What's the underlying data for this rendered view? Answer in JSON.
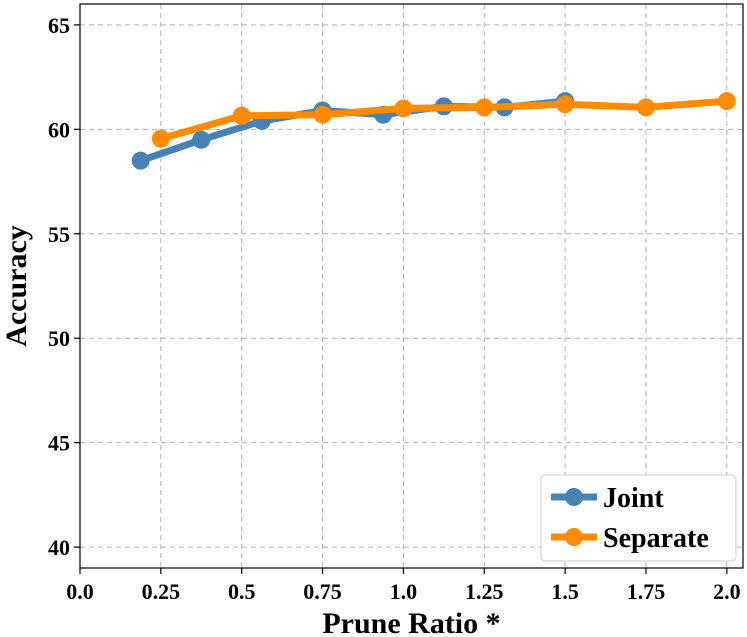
{
  "chart_data": {
    "type": "line",
    "xlabel": "Prune Ratio *",
    "ylabel": "Accuracy",
    "xlim": [
      0,
      2.05
    ],
    "ylim": [
      39,
      66
    ],
    "xticks": [
      0.0,
      0.25,
      0.5,
      0.75,
      1.0,
      1.25,
      1.5,
      1.75,
      2.0
    ],
    "xtick_labels": [
      "0.0",
      "0.25",
      "0.5",
      "0.75",
      "1.0",
      "1.25",
      "1.5",
      "1.75",
      "2.0"
    ],
    "yticks": [
      40,
      45,
      50,
      55,
      60,
      65
    ],
    "ytick_labels": [
      "40",
      "45",
      "50",
      "55",
      "60",
      "65"
    ],
    "grid": true,
    "legend_position": "bottom-right",
    "series": [
      {
        "name": "Joint",
        "color": "#4682b4",
        "x": [
          0.1875,
          0.375,
          0.5625,
          0.75,
          0.9375,
          1.125,
          1.3125,
          1.5
        ],
        "y": [
          58.5,
          59.5,
          60.4,
          60.9,
          60.7,
          61.1,
          61.05,
          61.35
        ]
      },
      {
        "name": "Separate",
        "color": "#ff8c00",
        "x": [
          0.25,
          0.5,
          0.75,
          1.0,
          1.25,
          1.5,
          1.75,
          2.0
        ],
        "y": [
          59.55,
          60.65,
          60.7,
          61.0,
          61.05,
          61.2,
          61.05,
          61.35
        ]
      }
    ]
  }
}
